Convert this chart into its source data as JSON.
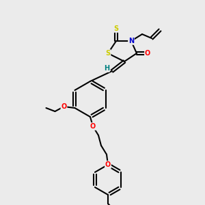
{
  "bg_color": "#ebebeb",
  "atom_colors": {
    "C": "#000000",
    "N": "#0000cc",
    "O": "#ff0000",
    "S": "#cccc00",
    "H_label": "#008080"
  },
  "bond_color": "#000000"
}
